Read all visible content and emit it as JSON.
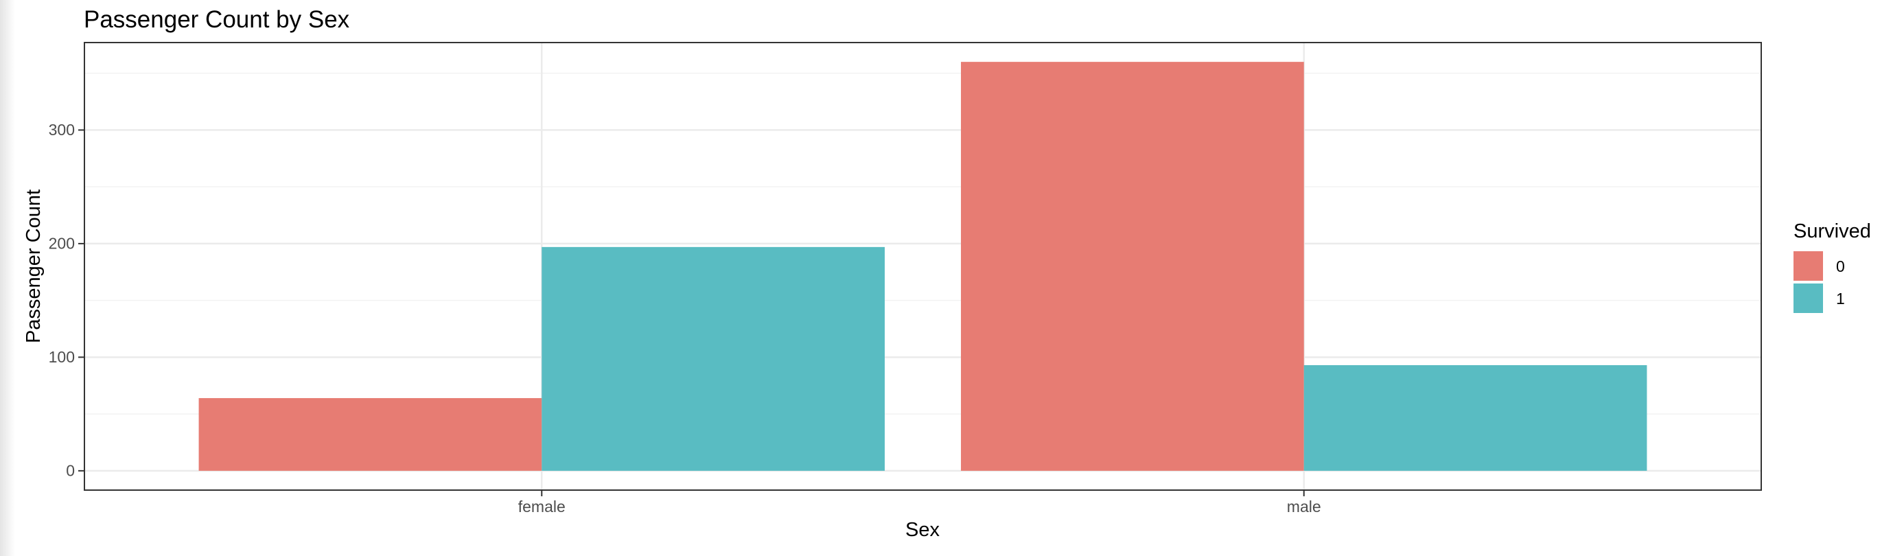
{
  "chart_data": {
    "type": "bar",
    "title": "Passenger Count by Sex",
    "xlabel": "Sex",
    "ylabel": "Passenger Count",
    "categories": [
      "female",
      "male"
    ],
    "series": [
      {
        "name": "0",
        "values": [
          64,
          360
        ],
        "color": "#E77C73"
      },
      {
        "name": "1",
        "values": [
          197,
          93
        ],
        "color": "#59BCC2"
      }
    ],
    "ylim": [
      -17,
      377
    ],
    "yticks": [
      0,
      100,
      200,
      300
    ],
    "legend": {
      "title": "Survived",
      "placement": "right"
    },
    "grid": true
  }
}
